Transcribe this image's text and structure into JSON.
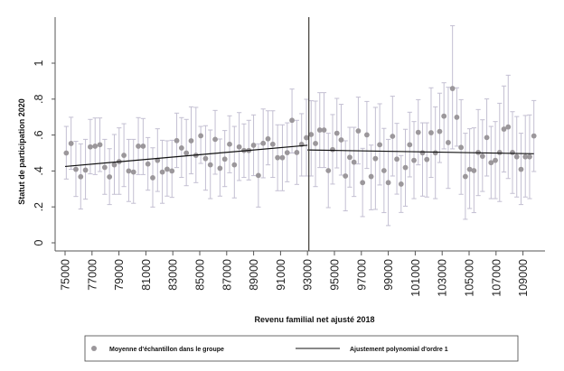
{
  "chart_data": {
    "type": "scatter",
    "title": "",
    "xlabel": "Revenu familial net ajusté 2018",
    "ylabel": "Statut de participation 2020",
    "xlim": [
      74300,
      110700
    ],
    "ylim": [
      0,
      1.2
    ],
    "grid": false,
    "cutoff": 93000,
    "x_ticks": [
      75000,
      77000,
      79000,
      81000,
      83000,
      85000,
      87000,
      89000,
      91000,
      93000,
      95000,
      97000,
      99000,
      101000,
      103000,
      105000,
      107000,
      109000
    ],
    "x_tick_labels": [
      "75000",
      "77000",
      "79000",
      "81000",
      "83000",
      "85000",
      "87000",
      "89000",
      "91000",
      "93000",
      "95000",
      "97000",
      "99000",
      "101000",
      "103000",
      "105000",
      "107000",
      "109000"
    ],
    "y_ticks": [
      0,
      0.2,
      0.4,
      0.6,
      0.8,
      1
    ],
    "y_tick_labels": [
      "0",
      ".2",
      ".4",
      ".6",
      ".8",
      "1"
    ],
    "legend": {
      "position": "bottom",
      "entries": [
        "Moyenne d'échantillon dans le groupe",
        "Ajustement polynomial d'ordre 1"
      ]
    },
    "colors": {
      "points": "#9b979b",
      "error_bars": "#c3bfd2",
      "fit": "#111111",
      "cutoff": "#3c3833",
      "axis": "#555555"
    },
    "series": [
      {
        "name": "Moyenne d'échantillon dans le groupe",
        "type": "scatter_errorbar",
        "x": [
          75090,
          75447,
          75803,
          76160,
          76516,
          76873,
          77230,
          77586,
          77943,
          78299,
          78656,
          79013,
          79369,
          79726,
          80082,
          80439,
          80796,
          81152,
          81509,
          81865,
          82222,
          82579,
          82935,
          83292,
          83648,
          84005,
          84362,
          84718,
          85075,
          85431,
          85788,
          86145,
          86501,
          86858,
          87214,
          87571,
          87928,
          88284,
          88641,
          88997,
          89354,
          89711,
          90067,
          90424,
          90780,
          91137,
          91494,
          91850,
          92207,
          92563,
          92920,
          93275,
          93593,
          93911,
          94229,
          94547,
          94865,
          95183,
          95501,
          95819,
          96137,
          96455,
          96773,
          97091,
          97409,
          97727,
          98045,
          98363,
          98681,
          98999,
          99317,
          99635,
          99953,
          100271,
          100589,
          100907,
          101225,
          101543,
          101861,
          102179,
          102497,
          102815,
          103133,
          103451,
          103769,
          104087,
          104405,
          104723,
          105041,
          105359,
          105677,
          105995,
          106313,
          106631,
          106949,
          107267,
          107585,
          107903,
          108221,
          108539,
          108857,
          109175,
          109493,
          109811
        ],
        "y": [
          0.5,
          0.553,
          0.409,
          0.368,
          0.405,
          0.534,
          0.538,
          0.546,
          0.42,
          0.367,
          0.434,
          0.452,
          0.487,
          0.4,
          0.394,
          0.538,
          0.538,
          0.439,
          0.362,
          0.459,
          0.394,
          0.41,
          0.4,
          0.569,
          0.528,
          0.5,
          0.568,
          0.487,
          0.596,
          0.469,
          0.434,
          0.576,
          0.415,
          0.466,
          0.549,
          0.434,
          0.534,
          0.514,
          0.514,
          0.543,
          0.375,
          0.554,
          0.579,
          0.549,
          0.474,
          0.474,
          0.502,
          0.682,
          0.503,
          0.548,
          0.585,
          0.603,
          0.553,
          0.628,
          0.628,
          0.402,
          0.519,
          0.61,
          0.573,
          0.372,
          0.476,
          0.449,
          0.623,
          0.335,
          0.601,
          0.369,
          0.469,
          0.546,
          0.402,
          0.335,
          0.593,
          0.466,
          0.327,
          0.419,
          0.546,
          0.459,
          0.615,
          0.501,
          0.464,
          0.613,
          0.501,
          0.62,
          0.705,
          0.558,
          0.859,
          0.699,
          0.531,
          0.369,
          0.409,
          0.402,
          0.503,
          0.482,
          0.586,
          0.446,
          0.459,
          0.503,
          0.633,
          0.645,
          0.503,
          0.479,
          0.409,
          0.479,
          0.479,
          0.595
        ],
        "ci_low": [
          0.355,
          0.409,
          0.258,
          0.188,
          0.243,
          0.384,
          0.38,
          0.397,
          0.27,
          0.213,
          0.27,
          0.27,
          0.313,
          0.23,
          0.22,
          0.38,
          0.38,
          0.293,
          0.199,
          0.286,
          0.22,
          0.26,
          0.253,
          0.419,
          0.364,
          0.318,
          0.384,
          0.335,
          0.442,
          0.293,
          0.246,
          0.382,
          0.26,
          0.313,
          0.39,
          0.25,
          0.347,
          0.364,
          0.35,
          0.374,
          0.199,
          0.362,
          0.434,
          0.364,
          0.29,
          0.29,
          0.34,
          0.5,
          0.325,
          0.372,
          0.372,
          0.372,
          0.313,
          0.419,
          0.419,
          0.196,
          0.327,
          0.417,
          0.377,
          0.178,
          0.31,
          0.258,
          0.439,
          0.146,
          0.414,
          0.184,
          0.186,
          0.322,
          0.168,
          0.096,
          0.372,
          0.271,
          0.169,
          0.204,
          0.367,
          0.246,
          0.434,
          0.26,
          0.255,
          0.364,
          0.246,
          0.447,
          0.523,
          0.303,
          0.523,
          0.538,
          0.27,
          0.131,
          0.191,
          0.168,
          0.263,
          0.286,
          0.372,
          0.246,
          0.246,
          0.23,
          0.394,
          0.358,
          0.275,
          0.255,
          0.213,
          0.255,
          0.246,
          0.397
        ],
        "ci_high": [
          0.648,
          0.699,
          0.565,
          0.551,
          0.576,
          0.687,
          0.695,
          0.695,
          0.576,
          0.524,
          0.603,
          0.64,
          0.663,
          0.576,
          0.576,
          0.697,
          0.692,
          0.586,
          0.529,
          0.635,
          0.571,
          0.568,
          0.571,
          0.722,
          0.697,
          0.687,
          0.757,
          0.754,
          0.648,
          0.652,
          0.628,
          0.737,
          0.578,
          0.625,
          0.707,
          0.648,
          0.725,
          0.662,
          0.682,
          0.712,
          0.551,
          0.745,
          0.735,
          0.735,
          0.657,
          0.657,
          0.668,
          0.856,
          0.682,
          0.719,
          0.799,
          0.791,
          0.789,
          0.836,
          0.836,
          0.61,
          0.714,
          0.804,
          0.771,
          0.568,
          0.643,
          0.643,
          0.811,
          0.526,
          0.787,
          0.544,
          0.754,
          0.774,
          0.637,
          0.576,
          0.816,
          0.665,
          0.486,
          0.632,
          0.727,
          0.675,
          0.797,
          0.668,
          0.668,
          0.863,
          0.757,
          0.833,
          0.891,
          0.866,
          1.209,
          0.863,
          0.797,
          0.61,
          0.635,
          0.64,
          0.742,
          0.685,
          0.801,
          0.648,
          0.675,
          0.777,
          0.873,
          0.933,
          0.73,
          0.703,
          0.61,
          0.709,
          0.712,
          0.792
        ]
      },
      {
        "name": "Ajustement polynomial d'ordre 1",
        "type": "line",
        "segments": [
          {
            "x": [
              75000,
              93000
            ],
            "y": [
              0.425,
              0.543
            ]
          },
          {
            "x": [
              93000,
              109811
            ],
            "y": [
              0.517,
              0.496
            ]
          }
        ]
      }
    ]
  }
}
